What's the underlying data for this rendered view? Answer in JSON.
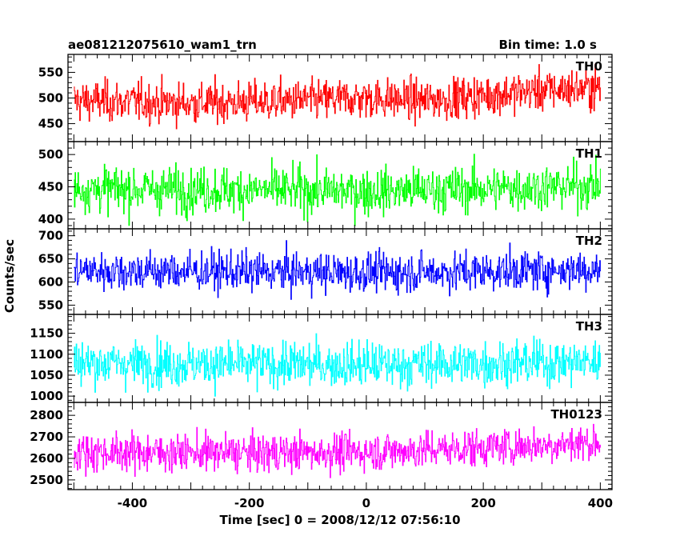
{
  "chart_data": {
    "type": "line",
    "title": "ae081212075610_wam1_trn",
    "subtitle": "Bin time: 1.0 s",
    "xlabel": "Time [sec] 0 = 2008/12/12 07:56:10",
    "ylabel": "Counts/sec",
    "xlim": [
      -510,
      420
    ],
    "xticks": [
      -400,
      -200,
      0,
      200,
      400
    ],
    "x_range": [
      -500,
      400
    ],
    "bin_time": 1.0,
    "panels": [
      {
        "name": "TH0",
        "color": "#ff0000",
        "ylim": [
          415,
          585
        ],
        "yticks": [
          450,
          500,
          550
        ],
        "mean": [
          [
            -500,
            495
          ],
          [
            -300,
            490
          ],
          [
            -100,
            495
          ],
          [
            0,
            500
          ],
          [
            100,
            495
          ],
          [
            200,
            505
          ],
          [
            300,
            515
          ],
          [
            400,
            520
          ]
        ],
        "spread": 28
      },
      {
        "name": "TH1",
        "color": "#00ff00",
        "ylim": [
          385,
          520
        ],
        "yticks": [
          400,
          450,
          500
        ],
        "mean": [
          [
            -500,
            447
          ],
          [
            -200,
            445
          ],
          [
            0,
            443
          ],
          [
            200,
            447
          ],
          [
            400,
            452
          ]
        ],
        "spread": 25
      },
      {
        "name": "TH2",
        "color": "#0000ff",
        "ylim": [
          530,
          715
        ],
        "yticks": [
          550,
          600,
          650,
          700
        ],
        "mean": [
          [
            -500,
            625
          ],
          [
            -200,
            622
          ],
          [
            0,
            620
          ],
          [
            200,
            623
          ],
          [
            400,
            628
          ]
        ],
        "spread": 30
      },
      {
        "name": "TH3",
        "color": "#00ffff",
        "ylim": [
          985,
          1195
        ],
        "yticks": [
          1000,
          1050,
          1100,
          1150
        ],
        "mean": [
          [
            -500,
            1080
          ],
          [
            -200,
            1075
          ],
          [
            0,
            1075
          ],
          [
            200,
            1078
          ],
          [
            400,
            1082
          ]
        ],
        "spread": 38
      },
      {
        "name": "TH0123",
        "color": "#ff00ff",
        "ylim": [
          2455,
          2860
        ],
        "yticks": [
          2500,
          2600,
          2700,
          2800
        ],
        "mean": [
          [
            -500,
            2630
          ],
          [
            -200,
            2625
          ],
          [
            0,
            2630
          ],
          [
            200,
            2650
          ],
          [
            400,
            2675
          ]
        ],
        "spread": 62
      }
    ]
  }
}
